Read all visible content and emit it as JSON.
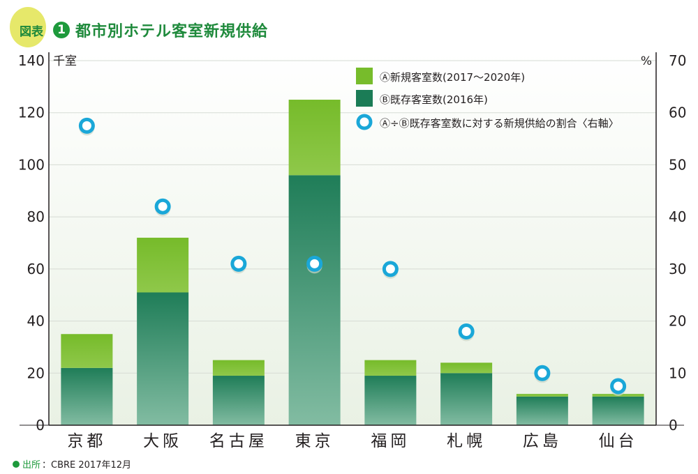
{
  "header": {
    "badge_label": "図表",
    "badge_number": "1",
    "title": "都市別ホテル客室新規供給"
  },
  "source": {
    "label": "出所",
    "text": "：CBRE 2017年12月"
  },
  "colors": {
    "new_rooms": "#77bc2b",
    "existing_rooms": "#1b7c56",
    "ratio_marker": "#1aa7d8",
    "accent": "#1e9a3c"
  },
  "chart_data": {
    "type": "bar",
    "stacked": true,
    "categories": [
      "京都",
      "大阪",
      "名古屋",
      "東京",
      "福岡",
      "札幌",
      "広島",
      "仙台"
    ],
    "series": [
      {
        "name": "Ⓑ既存客室数(2016年)",
        "axis": "left",
        "kind": "bar",
        "values": [
          22,
          51,
          19,
          96,
          19,
          20,
          11,
          11
        ]
      },
      {
        "name": "Ⓐ新規客室数(2017〜2020年)",
        "axis": "left",
        "kind": "bar",
        "values": [
          13,
          21,
          6,
          29,
          6,
          4,
          1,
          1
        ]
      },
      {
        "name": "Ⓐ÷Ⓑ既存客室数に対する新規供給の割合〈右軸〉",
        "axis": "right",
        "kind": "scatter",
        "values": [
          57.5,
          42,
          31,
          31,
          30,
          18,
          10,
          7.5
        ]
      }
    ],
    "legend_order": [
      1,
      0,
      2
    ],
    "legend_position": "top-right",
    "y_left": {
      "label": "千室",
      "min": 0,
      "max": 140,
      "ticks": [
        0,
        20,
        40,
        60,
        80,
        100,
        120,
        140
      ]
    },
    "y_right": {
      "label": "%",
      "min": 0,
      "max": 70,
      "ticks": [
        0,
        10,
        20,
        30,
        40,
        50,
        60,
        70
      ]
    },
    "grid": true
  }
}
